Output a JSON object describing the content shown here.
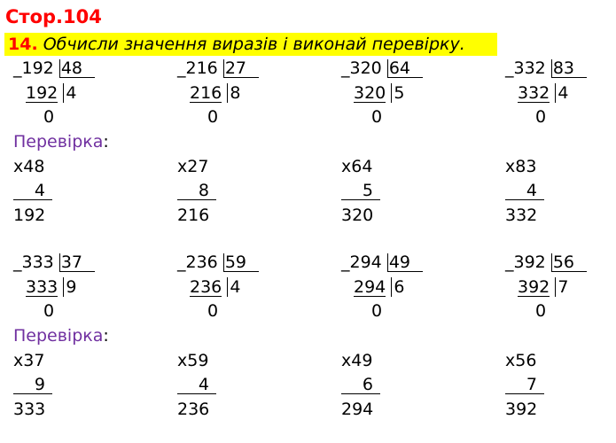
{
  "page": "Стор.104",
  "task": {
    "number": "14.",
    "text": "Обчисли значення виразів і виконай перевірку."
  },
  "check_label": "Перевірка",
  "groups": [
    {
      "divisions": [
        {
          "dividend": "192",
          "divisor": "48",
          "product": "192",
          "quotient": "4",
          "remainder": "0"
        },
        {
          "dividend": "216",
          "divisor": "27",
          "product": "216",
          "quotient": "8",
          "remainder": "0"
        },
        {
          "dividend": "320",
          "divisor": "64",
          "product": "320",
          "quotient": "5",
          "remainder": "0"
        },
        {
          "dividend": "332",
          "divisor": "83",
          "product": "332",
          "quotient": "4",
          "remainder": "0"
        }
      ],
      "checks": [
        {
          "a": "x48",
          "b": "4",
          "result": "192"
        },
        {
          "a": "x27",
          "b": "8",
          "result": "216"
        },
        {
          "a": "x64",
          "b": "5",
          "result": "320"
        },
        {
          "a": "x83",
          "b": "4",
          "result": "332"
        }
      ]
    },
    {
      "divisions": [
        {
          "dividend": "333",
          "divisor": "37",
          "product": "333",
          "quotient": "9",
          "remainder": "0"
        },
        {
          "dividend": "236",
          "divisor": "59",
          "product": "236",
          "quotient": "4",
          "remainder": "0"
        },
        {
          "dividend": "294",
          "divisor": "49",
          "product": "294",
          "quotient": "6",
          "remainder": "0"
        },
        {
          "dividend": "392",
          "divisor": "56",
          "product": "392",
          "quotient": "7",
          "remainder": "0"
        }
      ],
      "checks": [
        {
          "a": "x37",
          "b": "9",
          "result": "333"
        },
        {
          "a": "x59",
          "b": "4",
          "result": "236"
        },
        {
          "a": "x49",
          "b": "6",
          "result": "294"
        },
        {
          "a": "x56",
          "b": "7",
          "result": "392"
        }
      ]
    }
  ]
}
